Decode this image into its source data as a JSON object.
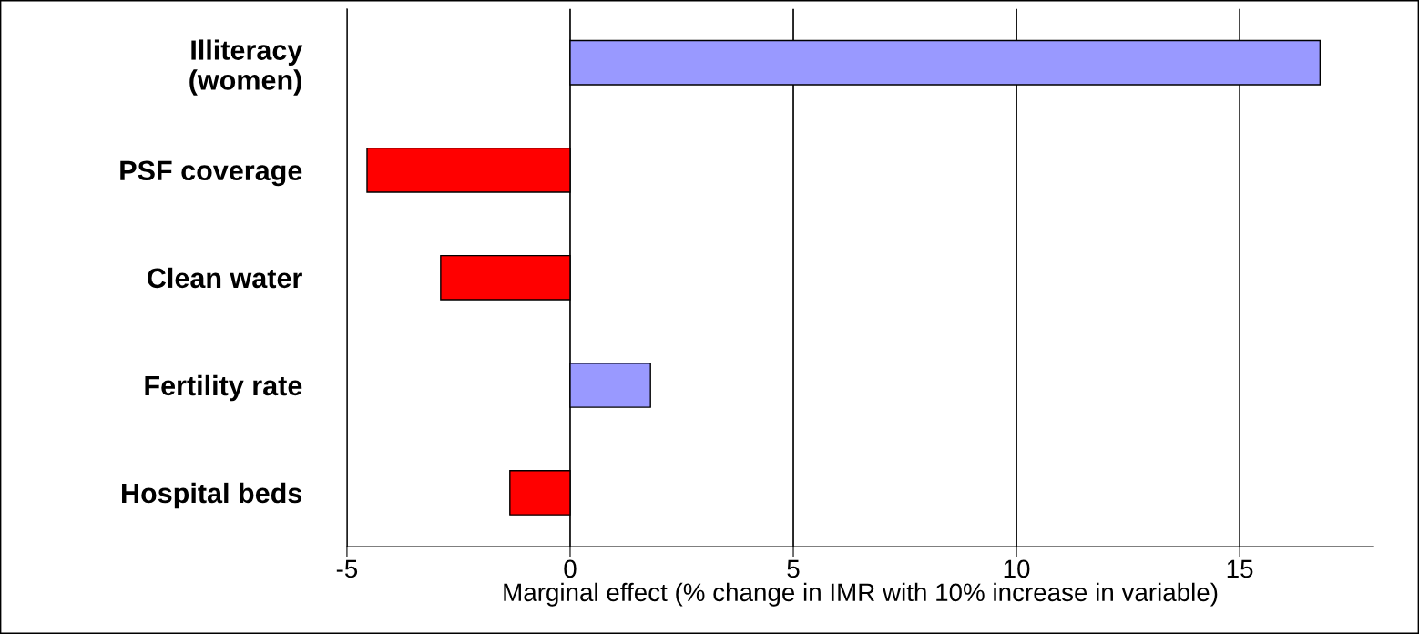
{
  "chart_data": {
    "type": "bar",
    "orientation": "horizontal",
    "categories": [
      "Illiteracy\n(women)",
      "PSF coverage",
      "Clean water",
      "Fertility rate",
      "Hospital beds"
    ],
    "values": [
      16.8,
      -4.55,
      -2.9,
      1.8,
      -1.35
    ],
    "colors": [
      "#9999ff",
      "#ff0000",
      "#ff0000",
      "#9999ff",
      "#ff0000"
    ],
    "xlabel": "Marginal effect (% change in IMR with 10% increase in variable)",
    "xlim": [
      -5,
      18
    ],
    "xticks": [
      -5,
      0,
      5,
      10,
      15
    ],
    "grid": "x"
  }
}
